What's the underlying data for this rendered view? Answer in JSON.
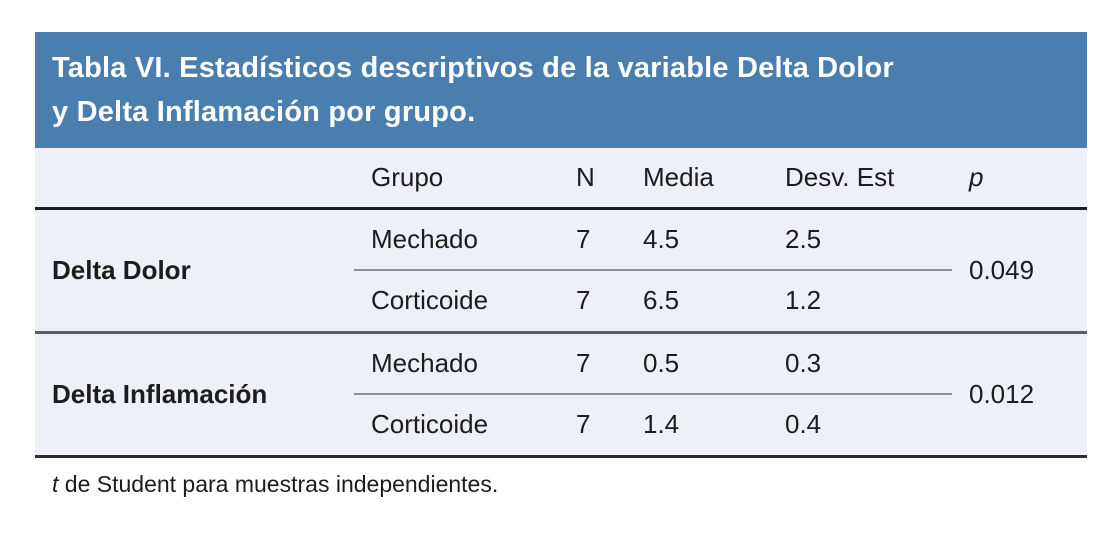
{
  "title": {
    "line1": "Tabla VI. Estadísticos descriptivos de la variable Delta Dolor",
    "line2": "y Delta Inflamación por grupo."
  },
  "table": {
    "headers": {
      "grupo": "Grupo",
      "n": "N",
      "media": "Media",
      "desv": "Desv. Est",
      "p": "p"
    },
    "groups": [
      {
        "label": "Delta Dolor",
        "p": "0.049",
        "rows": [
          {
            "grupo": "Mechado",
            "n": "7",
            "media": "4.5",
            "desv": "2.5"
          },
          {
            "grupo": "Corticoide",
            "n": "7",
            "media": "6.5",
            "desv": "1.2"
          }
        ]
      },
      {
        "label": "Delta Inflamación",
        "p": "0.012",
        "rows": [
          {
            "grupo": "Mechado",
            "n": "7",
            "media": "0.5",
            "desv": "0.3"
          },
          {
            "grupo": "Corticoide",
            "n": "7",
            "media": "1.4",
            "desv": "0.4"
          }
        ]
      }
    ]
  },
  "footnote": {
    "t": "t",
    "rest": " de Student para muestras independientes."
  },
  "colors": {
    "title_bar_bg": "#4a7eae",
    "title_text": "#ffffff",
    "table_bg": "#edf0f6",
    "text": "#1c1c1c",
    "header_rule": "#1f1f1f",
    "group_rule": "#5c5f62",
    "bottom_rule": "#2d2d2d",
    "mid_rule": "#8c8f93"
  }
}
